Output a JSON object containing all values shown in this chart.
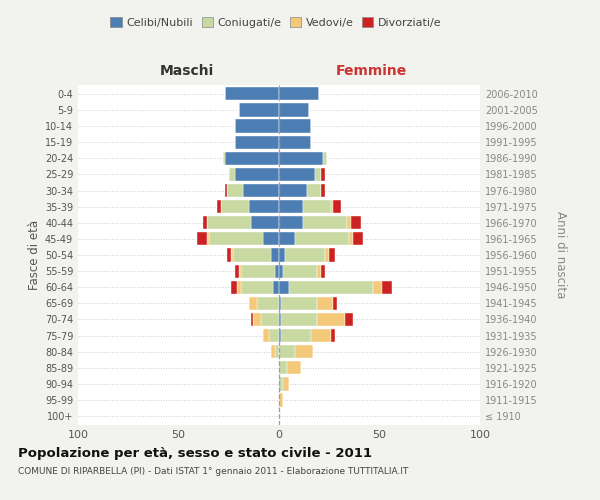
{
  "age_groups": [
    "100+",
    "95-99",
    "90-94",
    "85-89",
    "80-84",
    "75-79",
    "70-74",
    "65-69",
    "60-64",
    "55-59",
    "50-54",
    "45-49",
    "40-44",
    "35-39",
    "30-34",
    "25-29",
    "20-24",
    "15-19",
    "10-14",
    "5-9",
    "0-4"
  ],
  "birth_years": [
    "≤ 1910",
    "1911-1915",
    "1916-1920",
    "1921-1925",
    "1926-1930",
    "1931-1935",
    "1936-1940",
    "1941-1945",
    "1946-1950",
    "1951-1955",
    "1956-1960",
    "1961-1965",
    "1966-1970",
    "1971-1975",
    "1976-1980",
    "1981-1985",
    "1986-1990",
    "1991-1995",
    "1996-2000",
    "2001-2005",
    "2006-2010"
  ],
  "maschi": {
    "celibi": [
      0,
      0,
      0,
      0,
      0,
      0,
      0,
      0,
      3,
      2,
      4,
      8,
      14,
      15,
      18,
      22,
      27,
      22,
      22,
      20,
      27
    ],
    "coniugati": [
      0,
      0,
      0,
      0,
      2,
      5,
      9,
      11,
      16,
      17,
      19,
      27,
      22,
      14,
      8,
      3,
      1,
      0,
      0,
      0,
      0
    ],
    "vedovi": [
      0,
      0,
      0,
      0,
      2,
      3,
      4,
      4,
      2,
      1,
      1,
      1,
      0,
      0,
      0,
      0,
      0,
      0,
      0,
      0,
      0
    ],
    "divorziati": [
      0,
      0,
      0,
      0,
      0,
      0,
      1,
      0,
      3,
      2,
      2,
      5,
      2,
      2,
      1,
      0,
      0,
      0,
      0,
      0,
      0
    ]
  },
  "femmine": {
    "nubili": [
      0,
      0,
      0,
      0,
      0,
      1,
      1,
      1,
      5,
      2,
      3,
      8,
      12,
      12,
      14,
      18,
      22,
      16,
      16,
      15,
      20
    ],
    "coniugate": [
      0,
      0,
      2,
      4,
      8,
      15,
      18,
      18,
      42,
      17,
      20,
      27,
      22,
      14,
      7,
      3,
      2,
      0,
      0,
      0,
      0
    ],
    "vedove": [
      0,
      2,
      3,
      7,
      9,
      10,
      14,
      8,
      4,
      2,
      2,
      2,
      2,
      1,
      0,
      0,
      0,
      0,
      0,
      0,
      0
    ],
    "divorziate": [
      0,
      0,
      0,
      0,
      0,
      2,
      4,
      2,
      5,
      2,
      3,
      5,
      5,
      4,
      2,
      2,
      0,
      0,
      0,
      0,
      0
    ]
  },
  "colors": {
    "celibi": "#4d7eb3",
    "coniugati": "#c8d9a2",
    "vedovi": "#f5c97a",
    "divorziati": "#cc2222"
  },
  "title": "Popolazione per età, sesso e stato civile - 2011",
  "subtitle": "COMUNE DI RIPARBELLA (PI) - Dati ISTAT 1° gennaio 2011 - Elaborazione TUTTITALIA.IT",
  "ylabel": "Fasce di età",
  "ylabel_right": "Anni di nascita",
  "xlabel_left": "Maschi",
  "xlabel_right": "Femmine",
  "xlim": [
    -100,
    100
  ],
  "xticks": [
    -100,
    -50,
    0,
    50,
    100
  ],
  "legend_labels": [
    "Celibi/Nubili",
    "Coniugati/e",
    "Vedovi/e",
    "Divorziati/e"
  ],
  "bg_color": "#f2f2ee",
  "plot_bg": "#ffffff",
  "bar_height": 0.82
}
